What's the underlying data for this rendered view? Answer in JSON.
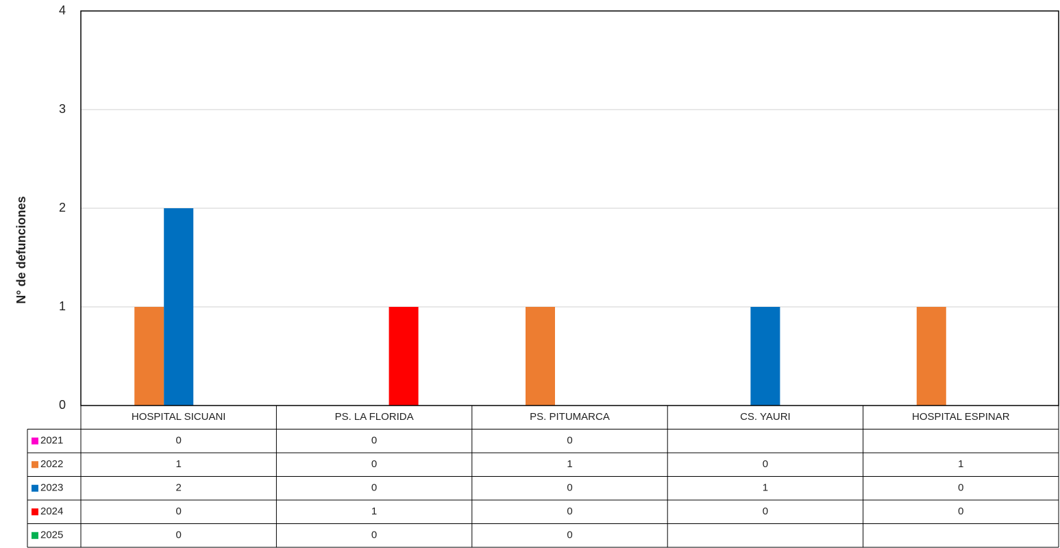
{
  "chart_data": {
    "type": "bar",
    "y_label": "N° de defunciones",
    "categories": [
      "HOSPITAL SICUANI",
      "PS. LA FLORIDA",
      "PS. PITUMARCA",
      "CS. YAURI",
      "HOSPITAL ESPINAR"
    ],
    "series": [
      {
        "name": "2021",
        "color": "#ff00cc",
        "values": [
          0,
          0,
          0,
          null,
          null
        ]
      },
      {
        "name": "2022",
        "color": "#ed7d31",
        "values": [
          1,
          0,
          1,
          0,
          1
        ]
      },
      {
        "name": "2023",
        "color": "#0070c0",
        "values": [
          2,
          0,
          0,
          1,
          0
        ]
      },
      {
        "name": "2024",
        "color": "#ff0000",
        "values": [
          0,
          1,
          0,
          0,
          0
        ]
      },
      {
        "name": "2025",
        "color": "#00b050",
        "values": [
          0,
          0,
          0,
          null,
          null
        ]
      }
    ],
    "ylim": [
      0,
      4
    ],
    "yticks": [
      0,
      1,
      2,
      3,
      4
    ],
    "grid": true,
    "data_table": true
  }
}
